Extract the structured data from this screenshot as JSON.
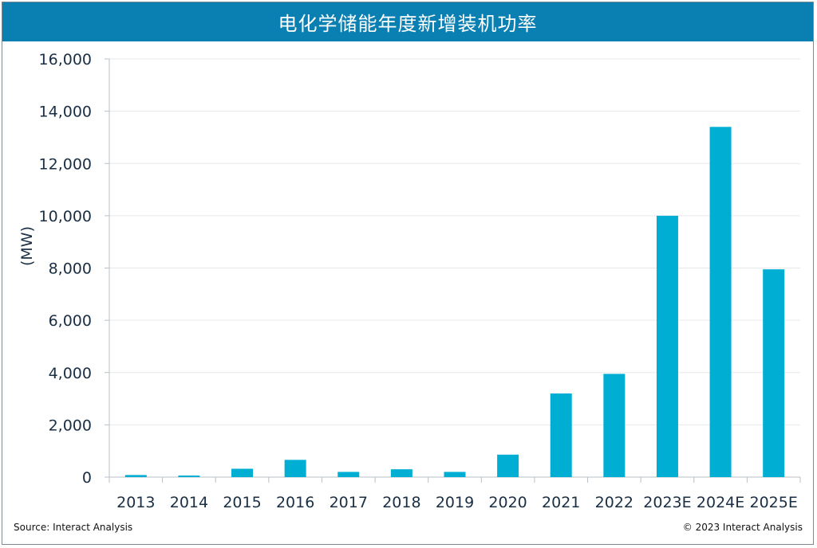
{
  "colors": {
    "title_bg": "#0a7fb2",
    "bar": "#00aed4",
    "grid": "#e6e9ec",
    "axis": "#b9c0c7",
    "text": "#1a2e44"
  },
  "footer": {
    "source": "Source: Interact Analysis",
    "copyright": "© 2023 Interact Analysis"
  },
  "chart_data": {
    "type": "bar",
    "title": "电化学储能年度新增装机功率",
    "ylabel": "(MW)",
    "xlabel": "",
    "categories": [
      "2013",
      "2014",
      "2015",
      "2016",
      "2017",
      "2018",
      "2019",
      "2020",
      "2021",
      "2022",
      "2023E",
      "2024E",
      "2025E"
    ],
    "values": [
      80,
      60,
      320,
      660,
      200,
      300,
      200,
      860,
      3200,
      3950,
      10000,
      13400,
      7950
    ],
    "ylim": [
      0,
      16000
    ],
    "yticks": [
      0,
      2000,
      4000,
      6000,
      8000,
      10000,
      12000,
      14000,
      16000
    ],
    "ytick_labels": [
      "0",
      "2,000",
      "4,000",
      "6,000",
      "8,000",
      "10,000",
      "12,000",
      "14,000",
      "16,000"
    ],
    "grid": true,
    "legend": "none"
  }
}
